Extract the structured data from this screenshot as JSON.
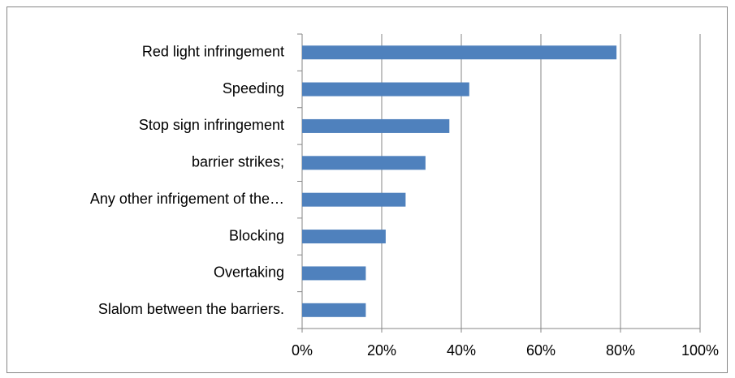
{
  "chart_data": {
    "type": "bar",
    "orientation": "horizontal",
    "categories": [
      "Red light infringement",
      "Speeding",
      "Stop sign infringement",
      "barrier strikes;",
      "Any other infrigement of the…",
      "Blocking",
      "Overtaking",
      "Slalom between the barriers."
    ],
    "values": [
      79,
      42,
      37,
      31,
      26,
      21,
      16,
      16
    ],
    "color": "#4f81bd",
    "xlim": [
      0,
      100
    ],
    "xticks": [
      {
        "value": 0,
        "label": "0%"
      },
      {
        "value": 20,
        "label": "20%"
      },
      {
        "value": 40,
        "label": "40%"
      },
      {
        "value": 60,
        "label": "60%"
      },
      {
        "value": 80,
        "label": "80%"
      },
      {
        "value": 100,
        "label": "100%"
      }
    ],
    "grid": true
  }
}
